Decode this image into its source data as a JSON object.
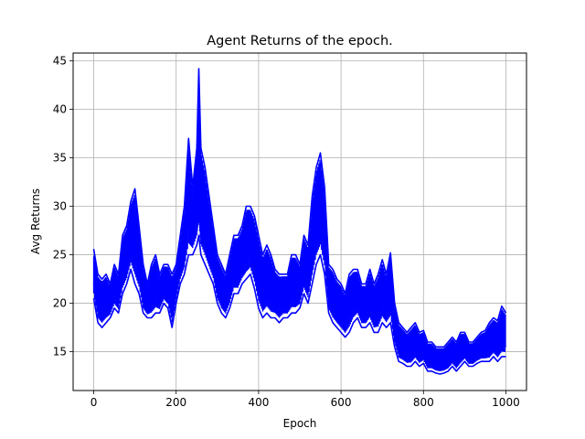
{
  "chart_data": {
    "type": "line",
    "title": "Agent Returns of the epoch.",
    "xlabel": "Epoch",
    "ylabel": "Avg Returns",
    "xlim": [
      -50,
      1050
    ],
    "ylim": [
      11,
      45.8
    ],
    "xticks": [
      "0",
      "200",
      "400",
      "600",
      "800",
      "1000"
    ],
    "yticks": [
      "15",
      "20",
      "25",
      "30",
      "35",
      "40",
      "45"
    ],
    "grid": true,
    "legend": "none",
    "series": [
      {
        "color": "#0000ff",
        "x": [
          0,
          10,
          20,
          30,
          40,
          50,
          60,
          70,
          80,
          90,
          100,
          110,
          120,
          130,
          140,
          150,
          160,
          170,
          180,
          190,
          200,
          210,
          220,
          230,
          240,
          250,
          255,
          260,
          270,
          280,
          290,
          300,
          310,
          320,
          330,
          340,
          350,
          360,
          370,
          380,
          390,
          400,
          410,
          420,
          430,
          440,
          450,
          460,
          470,
          480,
          490,
          500,
          510,
          520,
          530,
          540,
          550,
          560,
          570,
          580,
          590,
          600,
          610,
          620,
          630,
          640,
          650,
          660,
          670,
          680,
          690,
          700,
          710,
          720,
          730,
          740,
          750,
          760,
          770,
          780,
          790,
          800,
          810,
          820,
          830,
          840,
          850,
          860,
          870,
          880,
          890,
          900,
          910,
          920,
          930,
          940,
          950,
          960,
          970,
          980,
          990,
          1000
        ],
        "y": [
          22,
          20,
          19.5,
          20.5,
          20,
          22,
          21,
          24,
          25,
          27,
          26,
          25,
          21,
          20,
          21,
          22,
          21,
          22.5,
          22,
          21.5,
          22.5,
          25,
          27,
          31,
          29,
          30,
          38,
          30,
          28,
          27,
          25,
          22,
          21,
          20.5,
          22,
          24,
          24.5,
          25,
          26,
          27,
          25,
          23,
          22,
          23,
          22,
          21,
          20.5,
          21,
          21,
          22,
          22.5,
          22,
          24,
          23,
          27,
          30,
          31,
          28,
          22,
          21,
          20,
          19.5,
          19,
          20,
          20,
          21,
          20,
          19.5,
          21,
          19,
          20,
          21,
          20,
          21,
          18,
          16,
          15.5,
          15,
          15.5,
          16,
          15,
          15.5,
          14.5,
          14.5,
          14,
          14,
          14,
          14,
          15,
          14.5,
          15,
          15.5,
          14.5,
          14.5,
          15,
          15.5,
          15.5,
          15.5,
          16,
          15.5,
          16,
          15.5
        ]
      },
      {
        "color": "#0000ff",
        "x": [
          0,
          10,
          20,
          30,
          40,
          50,
          60,
          70,
          80,
          90,
          100,
          110,
          120,
          130,
          140,
          150,
          160,
          170,
          180,
          190,
          200,
          210,
          220,
          230,
          240,
          250,
          255,
          260,
          270,
          280,
          290,
          300,
          310,
          320,
          330,
          340,
          350,
          360,
          370,
          380,
          390,
          400,
          410,
          420,
          430,
          440,
          450,
          460,
          470,
          480,
          490,
          500,
          510,
          520,
          530,
          540,
          550,
          560,
          570,
          580,
          590,
          600,
          610,
          620,
          630,
          640,
          650,
          660,
          670,
          680,
          690,
          700,
          710,
          720,
          730,
          740,
          750,
          760,
          770,
          780,
          790,
          800,
          810,
          820,
          830,
          840,
          850,
          860,
          870,
          880,
          890,
          900,
          910,
          920,
          930,
          940,
          950,
          960,
          970,
          980,
          990,
          1000
        ],
        "y": [
          25.6,
          23,
          22.5,
          23,
          22,
          24,
          23,
          27,
          28,
          30.5,
          31.8,
          28,
          24,
          22,
          24,
          25,
          23,
          24,
          24,
          23,
          24,
          27,
          30,
          37,
          32,
          36,
          44.2,
          36,
          34,
          31,
          28,
          25,
          24,
          23,
          25,
          27,
          27,
          28,
          30,
          30,
          29,
          27,
          25,
          26,
          25,
          23.5,
          23,
          23,
          23,
          25,
          25,
          24,
          27,
          26,
          31,
          34,
          35.5,
          32,
          24,
          23.5,
          22.5,
          22,
          21,
          23,
          23.5,
          23.5,
          22,
          22,
          23.5,
          22,
          23,
          24.5,
          23,
          25.2,
          20,
          18,
          17.5,
          17,
          17.5,
          18,
          17,
          17.2,
          16,
          16,
          15.5,
          15.5,
          15.5,
          16,
          16.5,
          16,
          17,
          17,
          16,
          16,
          16.5,
          17,
          17.2,
          18,
          18.5,
          18.2,
          19.7,
          19
        ]
      },
      {
        "color": "#0000ff",
        "x": [
          0,
          10,
          20,
          30,
          40,
          50,
          60,
          70,
          80,
          90,
          100,
          110,
          120,
          130,
          140,
          150,
          160,
          170,
          180,
          190,
          200,
          210,
          220,
          230,
          240,
          250,
          255,
          260,
          270,
          280,
          290,
          300,
          310,
          320,
          330,
          340,
          350,
          360,
          370,
          380,
          390,
          400,
          410,
          420,
          430,
          440,
          450,
          460,
          470,
          480,
          490,
          500,
          510,
          520,
          530,
          540,
          550,
          560,
          570,
          580,
          590,
          600,
          610,
          620,
          630,
          640,
          650,
          660,
          670,
          680,
          690,
          700,
          710,
          720,
          730,
          740,
          750,
          760,
          770,
          780,
          790,
          800,
          810,
          820,
          830,
          840,
          850,
          860,
          870,
          880,
          890,
          900,
          910,
          920,
          930,
          940,
          950,
          960,
          970,
          980,
          990,
          1000
        ],
        "y": [
          20.5,
          18,
          17.5,
          18,
          18.5,
          19.5,
          19,
          21,
          22,
          23.5,
          22,
          21,
          19,
          18.5,
          18.5,
          19,
          19,
          20,
          19.5,
          17.5,
          20,
          22,
          23,
          25,
          25,
          26,
          27,
          25,
          24,
          23,
          22,
          20,
          19,
          18.5,
          19.5,
          21,
          21,
          22,
          22.5,
          23,
          21.5,
          19.5,
          18.5,
          19,
          18.5,
          18.5,
          18,
          18.5,
          18.5,
          19,
          19,
          19.5,
          21,
          20,
          22,
          24,
          25,
          23,
          19,
          18,
          17.5,
          17,
          16.5,
          17,
          18,
          18.5,
          17.5,
          17.5,
          18,
          17,
          17,
          18,
          17.5,
          18,
          15.5,
          14,
          13.8,
          13.5,
          13.5,
          14,
          13.5,
          13.8,
          13,
          13,
          12.8,
          12.7,
          12.8,
          13,
          13.5,
          13,
          13.5,
          14,
          13.5,
          13.5,
          13.8,
          14,
          14,
          14,
          14.5,
          14,
          14.5,
          14.5
        ]
      }
    ]
  }
}
